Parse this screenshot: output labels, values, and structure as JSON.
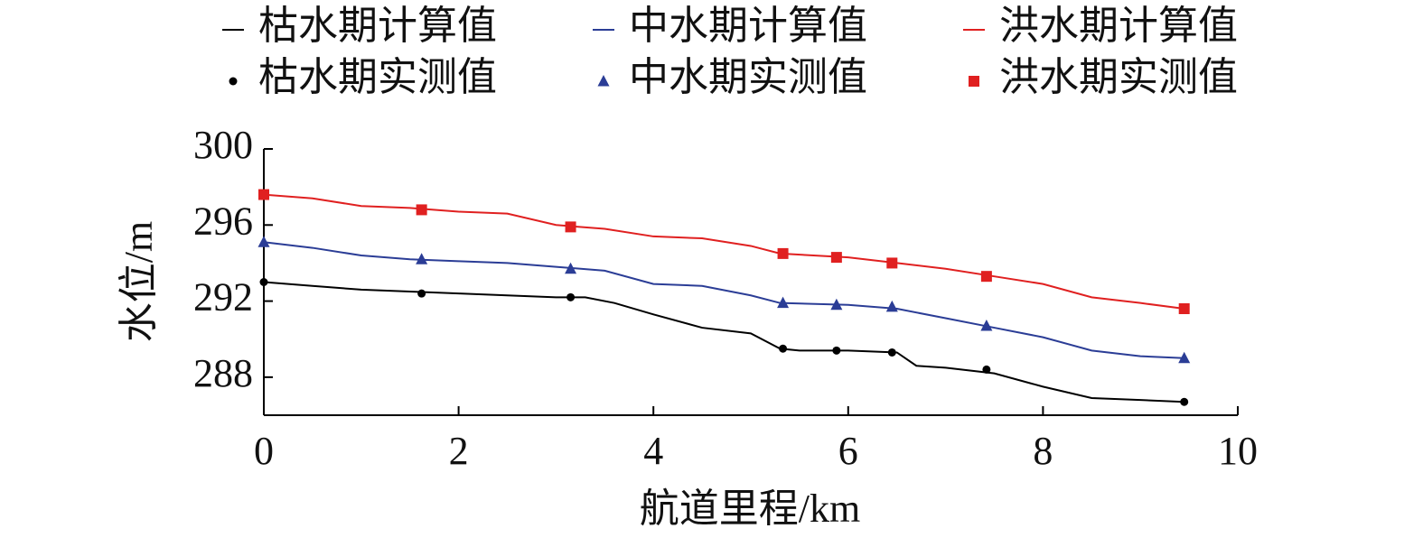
{
  "chart_data": {
    "type": "line",
    "x_label": "航道里程/km",
    "y_label": "水位/m",
    "xlim": [
      0,
      10
    ],
    "xticks": [
      0,
      2,
      4,
      6,
      8,
      10
    ],
    "ylim": [
      286,
      300
    ],
    "yticks": [
      288,
      292,
      296,
      300
    ],
    "legend": "top",
    "series": [
      {
        "name": "枯水期计算值",
        "color": "#000000",
        "mode": "line",
        "x": [
          0,
          0.5,
          1,
          1.5,
          2,
          2.5,
          3,
          3.3,
          3.6,
          4,
          4.5,
          5,
          5.3,
          5.5,
          6,
          6.5,
          6.7,
          7,
          7.5,
          8,
          8.5,
          9,
          9.45
        ],
        "values": [
          293.0,
          292.8,
          292.6,
          292.5,
          292.4,
          292.3,
          292.2,
          292.2,
          291.9,
          291.3,
          290.6,
          290.3,
          289.5,
          289.4,
          289.4,
          289.3,
          288.6,
          288.5,
          288.2,
          287.5,
          286.9,
          286.8,
          286.7
        ]
      },
      {
        "name": "中水期计算值",
        "color": "#2b3d96",
        "mode": "line",
        "x": [
          0,
          0.5,
          1,
          1.5,
          2,
          2.5,
          3,
          3.5,
          4,
          4.5,
          5,
          5.3,
          6,
          6.5,
          7,
          7.5,
          8,
          8.5,
          9,
          9.45
        ],
        "values": [
          295.1,
          294.8,
          294.4,
          294.2,
          294.1,
          294.0,
          293.8,
          293.6,
          292.9,
          292.8,
          292.3,
          291.9,
          291.8,
          291.6,
          291.1,
          290.6,
          290.1,
          289.4,
          289.1,
          289.0
        ]
      },
      {
        "name": "洪水期计算值",
        "color": "#e02020",
        "mode": "line",
        "x": [
          0,
          0.5,
          1,
          1.5,
          2,
          2.5,
          3,
          3.5,
          4,
          4.5,
          5,
          5.3,
          6,
          6.5,
          7,
          7.5,
          8,
          8.5,
          9,
          9.45
        ],
        "values": [
          297.6,
          297.4,
          297.0,
          296.9,
          296.7,
          296.6,
          296.0,
          295.8,
          295.4,
          295.3,
          294.9,
          294.5,
          294.3,
          294.0,
          293.7,
          293.3,
          292.9,
          292.2,
          291.9,
          291.6
        ]
      },
      {
        "name": "枯水期实测值",
        "color": "#000000",
        "mode": "marker",
        "marker": "circle",
        "x": [
          0,
          1.62,
          3.15,
          5.33,
          5.88,
          6.45,
          7.42,
          9.45
        ],
        "values": [
          293.0,
          292.4,
          292.2,
          289.5,
          289.4,
          289.3,
          288.4,
          286.7
        ]
      },
      {
        "name": "中水期实测值",
        "color": "#2b3d96",
        "mode": "marker",
        "marker": "triangle",
        "x": [
          0,
          1.62,
          3.15,
          5.33,
          5.88,
          6.45,
          7.42,
          9.45
        ],
        "values": [
          295.1,
          294.2,
          293.7,
          291.9,
          291.8,
          291.7,
          290.7,
          289.0
        ]
      },
      {
        "name": "洪水期实测值",
        "color": "#e02020",
        "mode": "marker",
        "marker": "square",
        "x": [
          0,
          1.62,
          3.15,
          5.33,
          5.88,
          6.45,
          7.42,
          9.45
        ],
        "values": [
          297.6,
          296.8,
          295.9,
          294.5,
          294.3,
          294.0,
          293.3,
          291.6
        ]
      }
    ]
  }
}
